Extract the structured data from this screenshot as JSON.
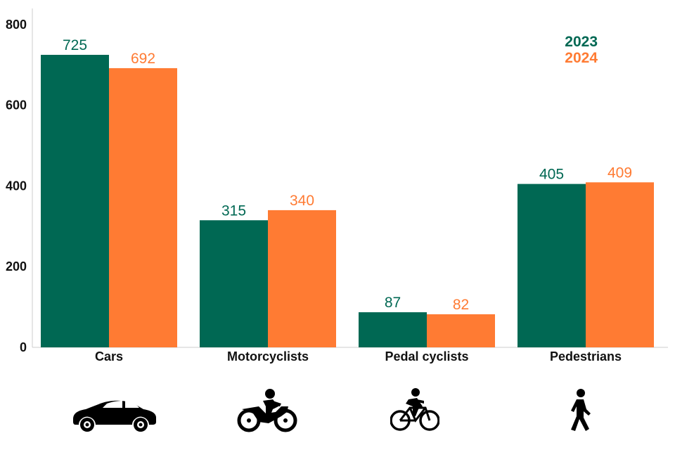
{
  "chart_data": {
    "type": "bar",
    "title": "",
    "xlabel": "",
    "ylabel": "",
    "ylim": [
      0,
      840
    ],
    "yticks": [
      0,
      200,
      400,
      600,
      800
    ],
    "categories": [
      "Cars",
      "Motorcyclists",
      "Pedal cyclists",
      "Pedestrians"
    ],
    "series": [
      {
        "name": "2023",
        "color": "#006853",
        "values": [
          725,
          315,
          87,
          405
        ]
      },
      {
        "name": "2024",
        "color": "#ff7b33",
        "values": [
          692,
          340,
          82,
          409
        ]
      }
    ],
    "legend": {
      "placement": "top-right",
      "entries": [
        "2023",
        "2024"
      ]
    },
    "grid": false
  },
  "icons": [
    "car-icon",
    "motorcycle-icon",
    "bicycle-icon",
    "pedestrian-icon"
  ]
}
